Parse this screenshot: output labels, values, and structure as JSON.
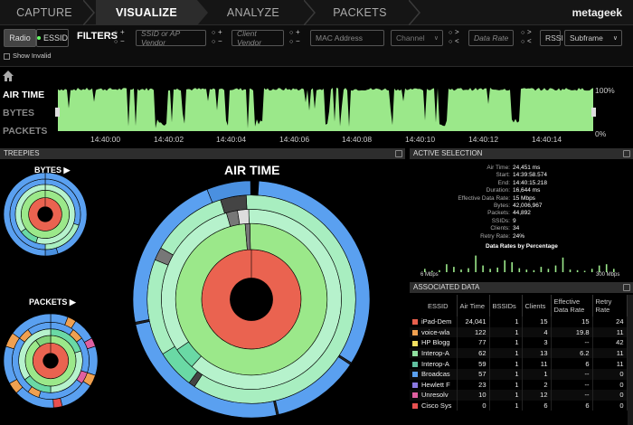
{
  "nav": {
    "tabs": [
      {
        "label": "CAPTURE",
        "active": false
      },
      {
        "label": "VISUALIZE",
        "active": true
      },
      {
        "label": "ANALYZE",
        "active": false
      },
      {
        "label": "PACKETS",
        "active": false
      }
    ],
    "logo": "metageek"
  },
  "filters": {
    "mode_radio": "Radio",
    "mode_essid": "ESSID",
    "title": "FILTERS",
    "ssid_placeholder": "SSID or AP Vendor",
    "client_placeholder": "Client Vendor",
    "mac_placeholder": "MAC Address",
    "channel": "Channel",
    "rate_placeholder": "Data Rate",
    "rssi": "RSSI",
    "subframe": "Subframe",
    "show_invalid": "Show Invalid",
    "plus": "+",
    "minus": "−",
    "gt": ">",
    "lt": "<"
  },
  "timeline": {
    "labels": [
      "AIR TIME",
      "BYTES",
      "PACKETS"
    ],
    "active_label": "AIR TIME",
    "ticks": [
      "14:40:00",
      "14:40:02",
      "14:40:04",
      "14:40:06",
      "14:40:08",
      "14:40:10",
      "14:40:12",
      "14:40:14"
    ],
    "pct_top": "100%",
    "pct_bottom": "0%",
    "fill_color": "#9be88a"
  },
  "treepies": {
    "header": "TREEPIES",
    "bytes_label": "BYTES",
    "packets_label": "PACKETS",
    "main_title": "AIR TIME"
  },
  "active_selection": {
    "header": "ACTIVE SELECTION",
    "stats": [
      {
        "k": "Air Time:",
        "v": "24,451 ms"
      },
      {
        "k": "Start:",
        "v": "14:39:58.574"
      },
      {
        "k": "End:",
        "v": "14:40:15.218"
      },
      {
        "k": "Duration:",
        "v": "16,644 ms"
      },
      {
        "k": "Effective Data Rate:",
        "v": "15 Mbps"
      },
      {
        "k": "Bytes:",
        "v": "42,006,967"
      },
      {
        "k": "Packets:",
        "v": "44,892"
      },
      {
        "k": "SSIDs:",
        "v": "9"
      },
      {
        "k": "Clients:",
        "v": "34"
      },
      {
        "k": "Retry Rate:",
        "v": "24%"
      }
    ],
    "rates_title": "Data Rates by Percentage",
    "rate_min": "6 Mbps",
    "rate_max": "300 Mbps",
    "rate_bars": [
      0.05,
      0.02,
      0.03,
      0.12,
      0.08,
      0.04,
      0.06,
      0.25,
      0.1,
      0.05,
      0.07,
      0.18,
      0.15,
      0.06,
      0.04,
      0.03,
      0.08,
      0.05,
      0.1,
      0.22,
      0.04,
      0.03,
      0.02,
      0.05,
      0.1,
      0.12,
      0.05
    ]
  },
  "associated": {
    "header": "ASSOCIATED DATA",
    "columns": [
      "ESSID",
      "Air Time",
      "BSSIDs",
      "Clients",
      "Effective Data Rate",
      "Retry Rate"
    ],
    "rows": [
      {
        "color": "#e8604d",
        "essid": "iPad-Dem",
        "air": "24,041",
        "bssids": "1",
        "clients": "15",
        "rate": "15",
        "retry": "24"
      },
      {
        "color": "#f0a050",
        "essid": "voice-wla",
        "air": "122",
        "bssids": "1",
        "clients": "4",
        "rate": "19.8",
        "retry": "11"
      },
      {
        "color": "#f2e060",
        "essid": "HP Blogg",
        "air": "77",
        "bssids": "1",
        "clients": "3",
        "rate": "--",
        "retry": "42"
      },
      {
        "color": "#90e0a0",
        "essid": "Interop-A",
        "air": "62",
        "bssids": "1",
        "clients": "13",
        "rate": "6.2",
        "retry": "11"
      },
      {
        "color": "#60c0a0",
        "essid": "Interop-A",
        "air": "59",
        "bssids": "1",
        "clients": "11",
        "rate": "6",
        "retry": "11"
      },
      {
        "color": "#5aa0f0",
        "essid": "Broadcas",
        "air": "57",
        "bssids": "1",
        "clients": "1",
        "rate": "--",
        "retry": "0"
      },
      {
        "color": "#8a78e0",
        "essid": "Hewlett F",
        "air": "23",
        "bssids": "1",
        "clients": "2",
        "rate": "--",
        "retry": "0"
      },
      {
        "color": "#e060a0",
        "essid": "Unresolv",
        "air": "10",
        "bssids": "1",
        "clients": "12",
        "rate": "--",
        "retry": "0"
      },
      {
        "color": "#e85050",
        "essid": "Cisco Sys",
        "air": "0",
        "bssids": "1",
        "clients": "6",
        "rate": "6",
        "retry": "0"
      }
    ]
  }
}
